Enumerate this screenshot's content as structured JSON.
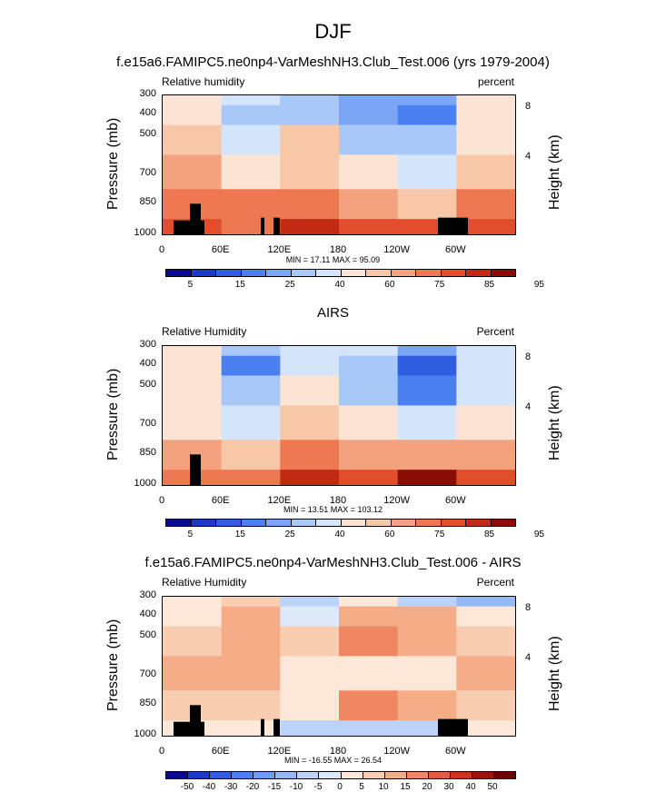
{
  "main_title": "DJF",
  "panels": [
    {
      "subtitle": "f.e15a6.FAMIPC5.ne0np4-VarMeshNH3.Club_Test.006 (yrs 1979-2004)",
      "left_tag": "Relative humidity",
      "right_tag": "percent",
      "stats": "MIN = 17.11  MAX = 95.09",
      "colorbar_labels": [
        "5",
        "15",
        "25",
        "40",
        "60",
        "75",
        "85",
        "95"
      ]
    },
    {
      "subtitle": "AIRS",
      "left_tag": "Relative Humidity",
      "right_tag": "Percent",
      "stats": "MIN = 13.51  MAX = 103.12",
      "colorbar_labels": [
        "5",
        "15",
        "25",
        "40",
        "60",
        "75",
        "85",
        "95"
      ]
    },
    {
      "subtitle": "f.e15a6.FAMIPC5.ne0np4-VarMeshNH3.Club_Test.006 - AIRS",
      "left_tag": "Relative Humidity",
      "right_tag": "Percent",
      "stats": "MIN = -16.55  MAX = 26.54",
      "colorbar_labels": [
        "-50",
        "-40",
        "-30",
        "-20",
        "-15",
        "-10",
        "-5",
        "0",
        "5",
        "10",
        "15",
        "20",
        "30",
        "40",
        "50"
      ]
    }
  ],
  "axes": {
    "y_label": "Pressure (mb)",
    "y_right_label": "Height (km)",
    "y_ticks": [
      "300",
      "400",
      "500",
      "700",
      "850",
      "1000"
    ],
    "y_right_ticks": [
      "8",
      "4"
    ],
    "x_ticks": [
      "0",
      "60E",
      "120E",
      "180",
      "120W",
      "60W"
    ]
  },
  "colors": {
    "seq": [
      "#0a0a8c",
      "#1b3ac6",
      "#2f5fe0",
      "#4a80f0",
      "#7aa6f5",
      "#a8c9f8",
      "#d4e4fa",
      "#fbe4d4",
      "#f8c7a8",
      "#f4a27d",
      "#ee7852",
      "#e24e2c",
      "#c22a14",
      "#8c0c06"
    ],
    "div": [
      "#0a0a8c",
      "#1b3ac6",
      "#2f5fe0",
      "#4a80f0",
      "#6f9cf4",
      "#95b8f7",
      "#bcd3f9",
      "#dde9fb",
      "#fde7d8",
      "#f9cdb0",
      "#f5ad88",
      "#ef8763",
      "#e45e3d",
      "#cc3519",
      "#9c1408",
      "#6c0505"
    ]
  },
  "chart_data": [
    {
      "type": "heatmap",
      "title": "f.e15a6.FAMIPC5.ne0np4-VarMeshNH3.Club_Test.006 (yrs 1979-2004)",
      "xlabel": "",
      "ylabel": "Pressure (mb)",
      "x": [
        "0",
        "60E",
        "120E",
        "180",
        "120W",
        "60W"
      ],
      "y": [
        300,
        400,
        500,
        700,
        850,
        1000
      ],
      "ylim": [
        1000,
        300
      ],
      "min": 17.11,
      "max": 95.09,
      "values": [
        [
          60,
          45,
          40,
          30,
          28,
          60
        ],
        [
          55,
          35,
          40,
          30,
          22,
          55
        ],
        [
          70,
          45,
          65,
          40,
          35,
          60
        ],
        [
          75,
          60,
          70,
          55,
          45,
          65
        ],
        [
          85,
          80,
          85,
          75,
          70,
          85
        ],
        [
          90,
          85,
          92,
          88,
          88,
          90
        ]
      ]
    },
    {
      "type": "heatmap",
      "title": "AIRS",
      "xlabel": "",
      "ylabel": "Pressure (mb)",
      "x": [
        "0",
        "60E",
        "120E",
        "180",
        "120W",
        "60W"
      ],
      "y": [
        300,
        400,
        500,
        700,
        850,
        1000
      ],
      "ylim": [
        1000,
        300
      ],
      "min": 13.51,
      "max": 103.12,
      "values": [
        [
          55,
          35,
          50,
          45,
          30,
          45
        ],
        [
          55,
          20,
          50,
          40,
          15,
          45
        ],
        [
          55,
          35,
          55,
          40,
          25,
          50
        ],
        [
          60,
          50,
          65,
          55,
          45,
          55
        ],
        [
          75,
          70,
          85,
          75,
          75,
          75
        ],
        [
          85,
          80,
          95,
          90,
          98,
          90
        ]
      ]
    },
    {
      "type": "heatmap",
      "title": "f.e15a6.FAMIPC5.ne0np4-VarMeshNH3.Club_Test.006 - AIRS",
      "xlabel": "",
      "ylabel": "Pressure (mb)",
      "x": [
        "0",
        "60E",
        "120E",
        "180",
        "120W",
        "60W"
      ],
      "y": [
        300,
        400,
        500,
        700,
        850,
        1000
      ],
      "ylim": [
        1000,
        300
      ],
      "min": -16.55,
      "max": 26.54,
      "values": [
        [
          5,
          10,
          -5,
          5,
          -5,
          -10
        ],
        [
          5,
          15,
          0,
          15,
          15,
          5
        ],
        [
          10,
          15,
          10,
          20,
          15,
          10
        ],
        [
          15,
          15,
          5,
          5,
          5,
          15
        ],
        [
          10,
          10,
          5,
          20,
          15,
          10
        ],
        [
          5,
          5,
          -5,
          -5,
          -5,
          5
        ]
      ]
    }
  ]
}
